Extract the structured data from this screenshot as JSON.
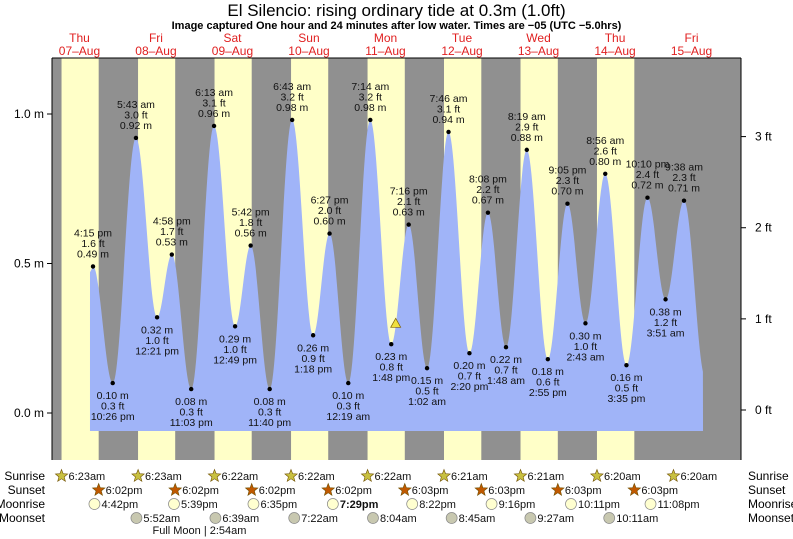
{
  "header": {
    "title": "El Silencio: rising  ordinary tide at 0.3m (1.0ft)",
    "subtitle": "Image captured One hour and 24 minutes after low water. Times are −05 (UTC −5.0hrs)"
  },
  "colors": {
    "night": "#909090",
    "day": "#ffffc8",
    "water": "#a0b4f8",
    "day_label": "#e02020",
    "sun_rise": "#c8c040",
    "sun_set": "#c05800",
    "moonrise": "#ffffd0",
    "moonset": "#c8c8b0"
  },
  "chart_data": {
    "type": "area",
    "title": "El Silencio tide",
    "time_unit": "hours since Thu 07-Aug 00:00",
    "ylim_m": [
      -0.06,
      1.16
    ],
    "y_ticks_m": [
      {
        "v": 0.0,
        "label": "0.0 m"
      },
      {
        "v": 0.5,
        "label": "0.5 m"
      },
      {
        "v": 1.0,
        "label": "1.0 m"
      }
    ],
    "y_ticks_ft": [
      {
        "v": 0,
        "label": "0 ft"
      },
      {
        "v": 1,
        "label": "1 ft"
      },
      {
        "v": 2,
        "label": "2 ft"
      },
      {
        "v": 3,
        "label": "3 ft"
      }
    ],
    "days": [
      {
        "dow": "Thu",
        "date": "07–Aug"
      },
      {
        "dow": "Fri",
        "date": "08–Aug"
      },
      {
        "dow": "Sat",
        "date": "09–Aug"
      },
      {
        "dow": "Sun",
        "date": "10–Aug"
      },
      {
        "dow": "Mon",
        "date": "11–Aug"
      },
      {
        "dow": "Tue",
        "date": "12–Aug"
      },
      {
        "dow": "Wed",
        "date": "13–Aug"
      },
      {
        "dow": "Thu",
        "date": "14–Aug"
      },
      {
        "dow": "Fri",
        "date": "15–Aug"
      }
    ],
    "extremes": [
      {
        "day": 0,
        "time": "4:15 pm",
        "h": 16.25,
        "type": "high",
        "m": "0.49 m",
        "ft": "1.6 ft",
        "v": 0.49
      },
      {
        "day": 0,
        "time": "10:26 pm",
        "h": 22.43,
        "type": "low",
        "m": "0.10 m",
        "ft": "0.3 ft",
        "v": 0.1
      },
      {
        "day": 1,
        "time": "5:43 am",
        "h": 5.72,
        "type": "high",
        "m": "0.92 m",
        "ft": "3.0 ft",
        "v": 0.92
      },
      {
        "day": 1,
        "time": "12:21 pm",
        "h": 12.35,
        "type": "low",
        "m": "0.32 m",
        "ft": "1.0 ft",
        "v": 0.32
      },
      {
        "day": 1,
        "time": "4:58 pm",
        "h": 16.97,
        "type": "high",
        "m": "0.53 m",
        "ft": "1.7 ft",
        "v": 0.53
      },
      {
        "day": 1,
        "time": "11:03 pm",
        "h": 23.05,
        "type": "low",
        "m": "0.08 m",
        "ft": "0.3 ft",
        "v": 0.08
      },
      {
        "day": 2,
        "time": "6:13 am",
        "h": 6.22,
        "type": "high",
        "m": "0.96 m",
        "ft": "3.1 ft",
        "v": 0.96
      },
      {
        "day": 2,
        "time": "12:49 pm",
        "h": 12.82,
        "type": "low",
        "m": "0.29 m",
        "ft": "1.0 ft",
        "v": 0.29
      },
      {
        "day": 2,
        "time": "5:42 pm",
        "h": 17.7,
        "type": "high",
        "m": "0.56 m",
        "ft": "1.8 ft",
        "v": 0.56
      },
      {
        "day": 2,
        "time": "11:40 pm",
        "h": 23.67,
        "type": "low",
        "m": "0.08 m",
        "ft": "0.3 ft",
        "v": 0.08
      },
      {
        "day": 3,
        "time": "6:43 am",
        "h": 6.72,
        "type": "high",
        "m": "0.98 m",
        "ft": "3.2 ft",
        "v": 0.98
      },
      {
        "day": 3,
        "time": "1:18 pm",
        "h": 13.3,
        "type": "low",
        "m": "0.26 m",
        "ft": "0.9 ft",
        "v": 0.26
      },
      {
        "day": 3,
        "time": "6:27 pm",
        "h": 18.45,
        "type": "high",
        "m": "0.60 m",
        "ft": "2.0 ft",
        "v": 0.6
      },
      {
        "day": 4,
        "time": "12:19 am",
        "h": 0.32,
        "type": "low",
        "m": "0.10 m",
        "ft": "0.3 ft",
        "v": 0.1
      },
      {
        "day": 4,
        "time": "7:14 am",
        "h": 7.23,
        "type": "high",
        "m": "0.98 m",
        "ft": "3.2 ft",
        "v": 0.98
      },
      {
        "day": 4,
        "time": "1:48 pm",
        "h": 13.8,
        "type": "low",
        "m": "0.23 m",
        "ft": "0.8 ft",
        "v": 0.23
      },
      {
        "day": 4,
        "time": "7:16 pm",
        "h": 19.27,
        "type": "high",
        "m": "0.63 m",
        "ft": "2.1 ft",
        "v": 0.63
      },
      {
        "day": 5,
        "time": "1:02 am",
        "h": 1.03,
        "type": "low",
        "m": "0.15 m",
        "ft": "0.5 ft",
        "v": 0.15
      },
      {
        "day": 5,
        "time": "7:46 am",
        "h": 7.77,
        "type": "high",
        "m": "0.94 m",
        "ft": "3.1 ft",
        "v": 0.94
      },
      {
        "day": 5,
        "time": "2:20 pm",
        "h": 14.33,
        "type": "low",
        "m": "0.20 m",
        "ft": "0.7 ft",
        "v": 0.2
      },
      {
        "day": 5,
        "time": "8:08 pm",
        "h": 20.13,
        "type": "high",
        "m": "0.67 m",
        "ft": "2.2 ft",
        "v": 0.67
      },
      {
        "day": 6,
        "time": "1:48 am",
        "h": 1.8,
        "type": "low",
        "m": "0.22 m",
        "ft": "0.7 ft",
        "v": 0.22
      },
      {
        "day": 6,
        "time": "8:19 am",
        "h": 8.32,
        "type": "high",
        "m": "0.88 m",
        "ft": "2.9 ft",
        "v": 0.88
      },
      {
        "day": 6,
        "time": "2:55 pm",
        "h": 14.92,
        "type": "low",
        "m": "0.18 m",
        "ft": "0.6 ft",
        "v": 0.18
      },
      {
        "day": 6,
        "time": "9:05 pm",
        "h": 21.08,
        "type": "high",
        "m": "0.70 m",
        "ft": "2.3 ft",
        "v": 0.7
      },
      {
        "day": 7,
        "time": "2:43 am",
        "h": 2.72,
        "type": "low",
        "m": "0.30 m",
        "ft": "1.0 ft",
        "v": 0.3
      },
      {
        "day": 7,
        "time": "8:56 am",
        "h": 8.93,
        "type": "high",
        "m": "0.80 m",
        "ft": "2.6 ft",
        "v": 0.8
      },
      {
        "day": 7,
        "time": "3:35 pm",
        "h": 15.58,
        "type": "low",
        "m": "0.16 m",
        "ft": "0.5 ft",
        "v": 0.16
      },
      {
        "day": 7,
        "time": "10:10 pm",
        "h": 22.17,
        "type": "high",
        "m": "0.72 m",
        "ft": "2.4 ft",
        "v": 0.72
      },
      {
        "day": 8,
        "time": "3:51 am",
        "h": 3.85,
        "type": "low",
        "m": "0.38 m",
        "ft": "1.2 ft",
        "v": 0.38
      },
      {
        "day": 8,
        "time": "9:38 am",
        "h": 9.63,
        "type": "high",
        "m": "0.71 m",
        "ft": "2.3 ft",
        "v": 0.71
      }
    ],
    "current": {
      "day": 4,
      "h": 15.2,
      "v": 0.3
    }
  },
  "sun_moon": {
    "labels": {
      "sunrise": "Sunrise",
      "sunset": "Sunset",
      "moonrise": "Moonrise",
      "moonset": "Moonset"
    },
    "sunrise": [
      {
        "day": 0,
        "h": 6.38,
        "t": "6:23am"
      },
      {
        "day": 1,
        "h": 6.38,
        "t": "6:23am"
      },
      {
        "day": 2,
        "h": 6.37,
        "t": "6:22am"
      },
      {
        "day": 3,
        "h": 6.37,
        "t": "6:22am"
      },
      {
        "day": 4,
        "h": 6.37,
        "t": "6:22am"
      },
      {
        "day": 5,
        "h": 6.35,
        "t": "6:21am"
      },
      {
        "day": 6,
        "h": 6.35,
        "t": "6:21am"
      },
      {
        "day": 7,
        "h": 6.33,
        "t": "6:20am"
      },
      {
        "day": 8,
        "h": 6.33,
        "t": "6:20am"
      }
    ],
    "sunset": [
      {
        "day": 0,
        "h": 18.03,
        "t": "6:02pm"
      },
      {
        "day": 1,
        "h": 18.03,
        "t": "6:02pm"
      },
      {
        "day": 2,
        "h": 18.03,
        "t": "6:02pm"
      },
      {
        "day": 3,
        "h": 18.03,
        "t": "6:02pm"
      },
      {
        "day": 4,
        "h": 18.05,
        "t": "6:03pm"
      },
      {
        "day": 5,
        "h": 18.05,
        "t": "6:03pm"
      },
      {
        "day": 6,
        "h": 18.05,
        "t": "6:03pm"
      },
      {
        "day": 7,
        "h": 18.05,
        "t": "6:03pm"
      }
    ],
    "moonrise": [
      {
        "day": 0,
        "h": 16.7,
        "t": "4:42pm"
      },
      {
        "day": 1,
        "h": 17.65,
        "t": "5:39pm"
      },
      {
        "day": 2,
        "h": 18.58,
        "t": "6:35pm"
      },
      {
        "day": 3,
        "h": 19.48,
        "t": "7:29pm",
        "bold": true
      },
      {
        "day": 4,
        "h": 20.37,
        "t": "8:22pm"
      },
      {
        "day": 5,
        "h": 21.27,
        "t": "9:16pm"
      },
      {
        "day": 6,
        "h": 22.18,
        "t": "10:11pm"
      },
      {
        "day": 7,
        "h": 23.13,
        "t": "11:08pm"
      }
    ],
    "moonset": [
      {
        "day": 1,
        "h": 5.87,
        "t": "5:52am"
      },
      {
        "day": 2,
        "h": 6.65,
        "t": "6:39am"
      },
      {
        "day": 3,
        "h": 7.37,
        "t": "7:22am"
      },
      {
        "day": 4,
        "h": 8.07,
        "t": "8:04am"
      },
      {
        "day": 5,
        "h": 8.75,
        "t": "8:45am"
      },
      {
        "day": 6,
        "h": 9.45,
        "t": "9:27am"
      },
      {
        "day": 7,
        "h": 10.18,
        "t": "10:11am"
      }
    ],
    "full_moon": {
      "day": 2,
      "h": 2.9,
      "text": "Full Moon | 2:54am"
    }
  }
}
